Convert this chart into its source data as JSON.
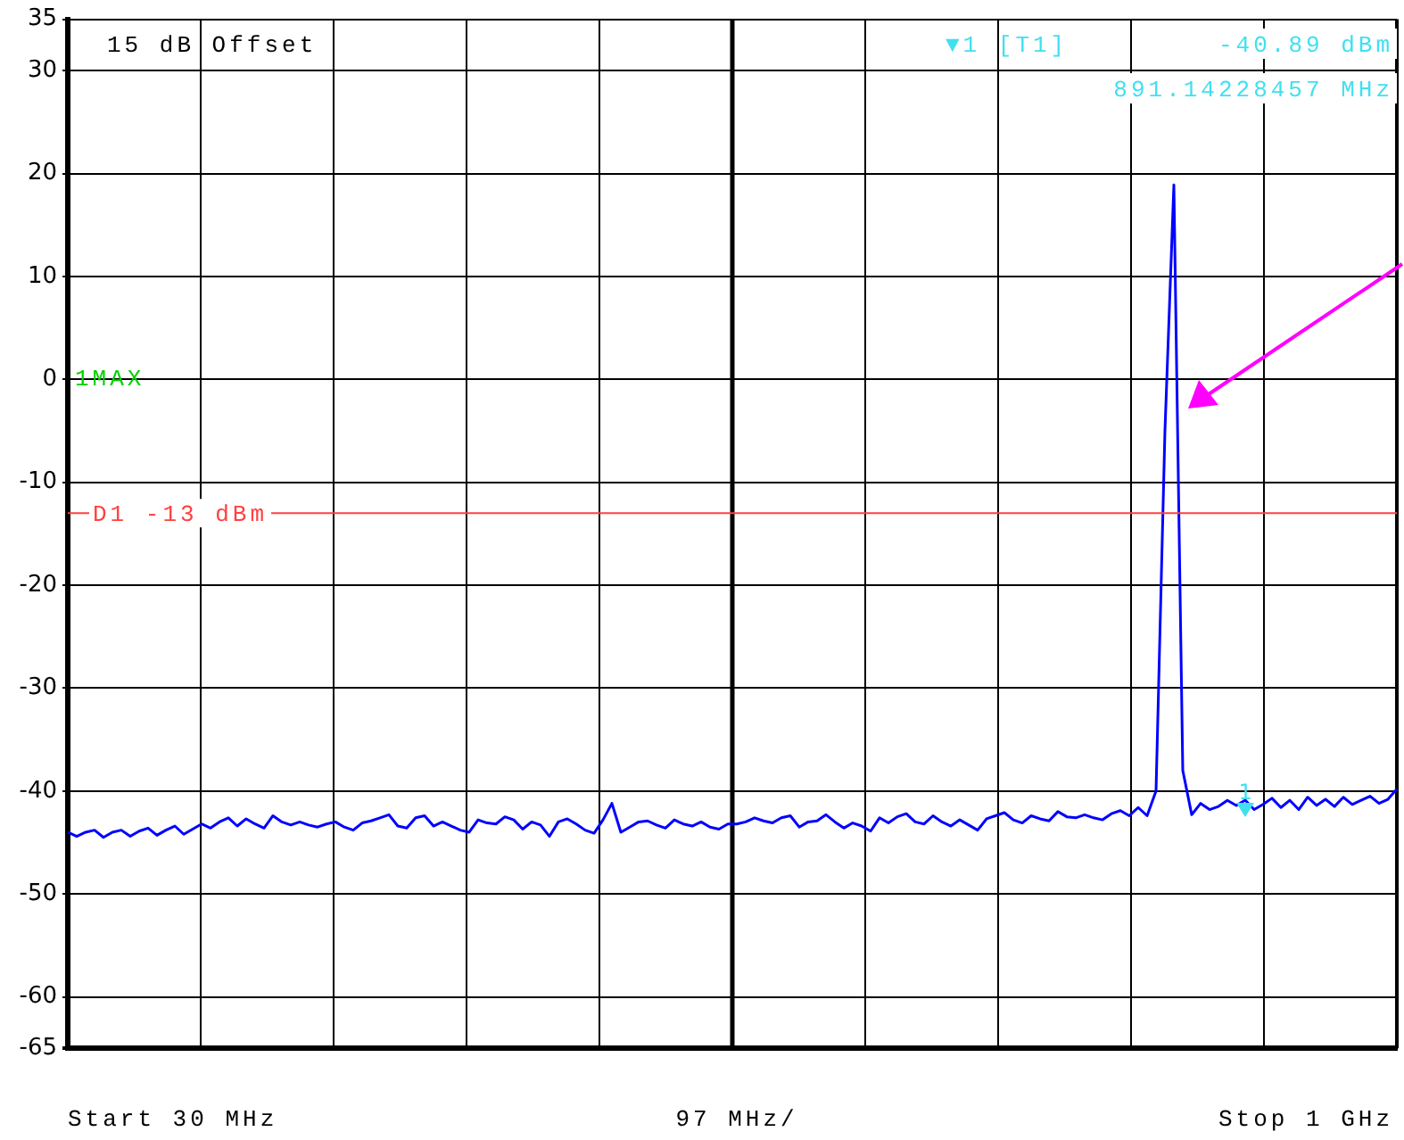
{
  "chart_data": {
    "type": "line",
    "annotations": [
      "15 dB Offset",
      "1MAX",
      "▼1 [T1]",
      "-40.89 dBm",
      "891.14228457 MHz",
      "Start 30 MHz",
      "97 MHz/",
      "Stop 1 GHz",
      "1"
    ],
    "categories": [
      null,
      null,
      null,
      null,
      null,
      null,
      null,
      null,
      null,
      null,
      null,
      null,
      null,
      null,
      null,
      null,
      null,
      null,
      null,
      null,
      null,
      null,
      null,
      null,
      null,
      null,
      null,
      null,
      null,
      null,
      null,
      null,
      null,
      null,
      null,
      null,
      null,
      null,
      null,
      null,
      null,
      null,
      null,
      null,
      null,
      null,
      null,
      null,
      null,
      null,
      null,
      null,
      null,
      null,
      null,
      null,
      null,
      null,
      null,
      null,
      null,
      null,
      null,
      null,
      null,
      null,
      null,
      null,
      null,
      null,
      null,
      null,
      null,
      null,
      null,
      null,
      null,
      null,
      null,
      null,
      null,
      null,
      null,
      null,
      null,
      null,
      null,
      null,
      null,
      null,
      null,
      null,
      null,
      null,
      null,
      null,
      null,
      null,
      null,
      null,
      null,
      null,
      null,
      null,
      null,
      null,
      null,
      null,
      null,
      null,
      null,
      null,
      null,
      null,
      null,
      null,
      null,
      null,
      null,
      null,
      null,
      null,
      null,
      null,
      null,
      null,
      null,
      null,
      null,
      null,
      null,
      null,
      null,
      null,
      null,
      null,
      null,
      null,
      null,
      null,
      null,
      null,
      null,
      null,
      null,
      null,
      null,
      null,
      null,
      null
    ],
    "series": [
      {
        "color": "#0000ff",
        "values": [
          -44.0,
          -44.4,
          -44.0,
          -43.8,
          -44.5,
          -44.0,
          -43.8,
          -44.4,
          -43.9,
          -43.6,
          -44.3,
          -43.8,
          -43.4,
          -44.2,
          -43.7,
          -43.2,
          -43.6,
          -43.0,
          -42.6,
          -43.4,
          -42.7,
          -43.2,
          -43.6,
          -42.4,
          -43.0,
          -43.3,
          -43.0,
          -43.3,
          -43.5,
          -43.2,
          -43.0,
          -43.5,
          -43.8,
          -43.1,
          -42.9,
          -42.6,
          -42.3,
          -43.4,
          -43.6,
          -42.6,
          -42.4,
          -43.4,
          -43.0,
          -43.4,
          -43.8,
          -44.0,
          -42.8,
          -43.1,
          -43.2,
          -42.5,
          -42.8,
          -43.7,
          -43.0,
          -43.3,
          -44.4,
          -43.0,
          -42.7,
          -43.2,
          -43.8,
          -44.1,
          -42.8,
          -41.2,
          -44.0,
          -43.5,
          -43.0,
          -42.9,
          -43.3,
          -43.6,
          -42.8,
          -43.2,
          -43.4,
          -43.0,
          -43.5,
          -43.7,
          -43.2,
          -43.2,
          -43.0,
          -42.6,
          -42.9,
          -43.1,
          -42.6,
          -42.4,
          -43.5,
          -43.0,
          -42.9,
          -42.3,
          -43.0,
          -43.6,
          -43.1,
          -43.4,
          -43.9,
          -42.6,
          -43.1,
          -42.5,
          -42.2,
          -43.0,
          -43.2,
          -42.4,
          -43.0,
          -43.4,
          -42.8,
          -43.3,
          -43.8,
          -42.7,
          -42.4,
          -42.1,
          -42.8,
          -43.1,
          -42.4,
          -42.7,
          -42.9,
          -42.0,
          -42.5,
          -42.6,
          -42.3,
          -42.6,
          -42.8,
          -42.2,
          -41.9,
          -42.4,
          -41.6,
          -42.4,
          -40.0,
          -5.0,
          18.9,
          -38.0,
          -42.3,
          -41.2,
          -41.8,
          -41.5,
          -40.9,
          -41.4,
          -40.89,
          -41.8,
          -41.3,
          -40.7,
          -41.6,
          -40.9,
          -41.8,
          -40.6,
          -41.4,
          -40.8,
          -41.5,
          -40.6,
          -41.3,
          -40.9,
          -40.5,
          -41.2,
          -40.8,
          -39.8
        ]
      }
    ],
    "ylim": [
      -65,
      35
    ],
    "yticks": [
      35,
      30,
      20,
      10,
      0,
      -10,
      -20,
      -30,
      -40,
      -50,
      -60,
      -65
    ],
    "grid": true,
    "legend": false,
    "marker": "none",
    "line_style": "solid",
    "ref_lines": [
      {
        "axis": "y",
        "value": -13,
        "label": "D1 -13 dBm",
        "color": "#ff4040",
        "line_style": "solid"
      }
    ]
  }
}
